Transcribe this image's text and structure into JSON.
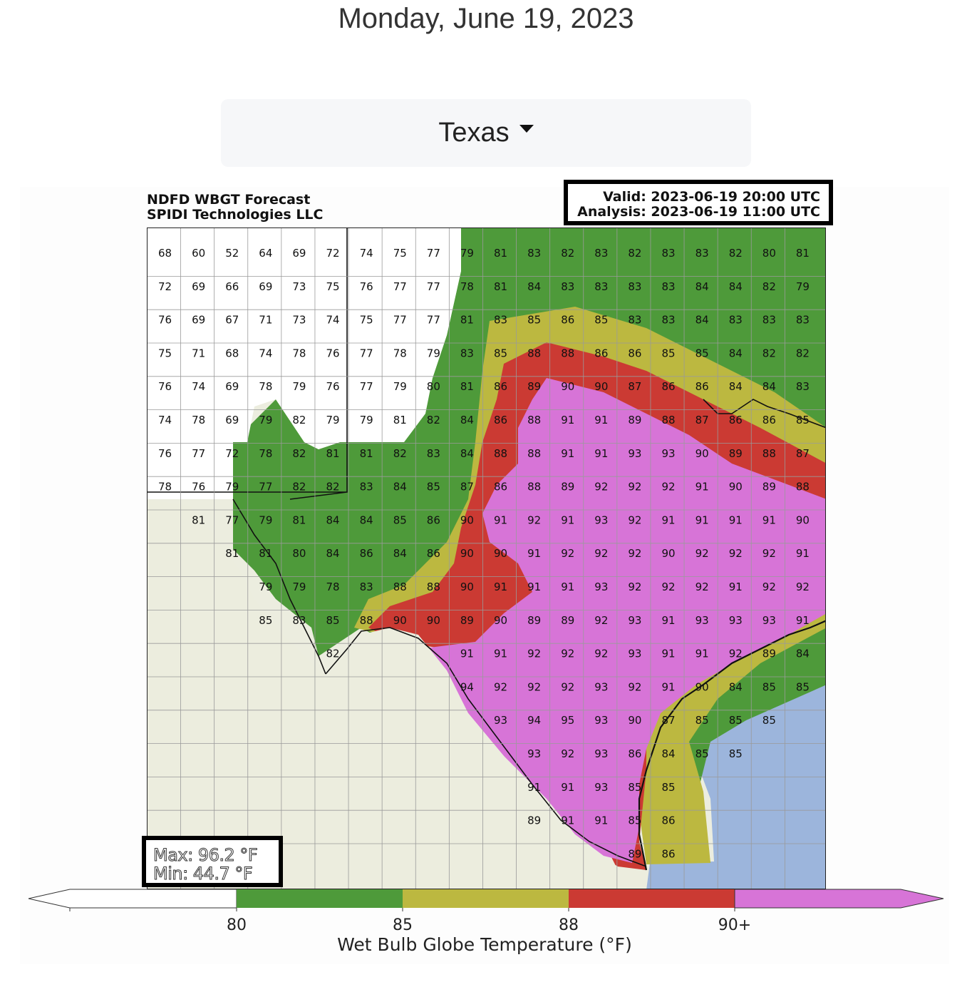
{
  "page": {
    "date": "Monday, June 19, 2023"
  },
  "region_select": {
    "label": "Texas",
    "icon": "caret-down-icon"
  },
  "map": {
    "title_line1": "NDFD WBGT Forecast",
    "title_line2": "SPIDI Technologies LLC",
    "valid": "Valid: 2023-06-19 20:00 UTC",
    "analysis": "Analysis: 2023-06-19 11:00 UTC",
    "max": "Max: 96.2 °F",
    "min": "Min: 44.7 °F",
    "colors": {
      "below80": "#ffffff",
      "80_85": "#4e9a3a",
      "85_88": "#bcb840",
      "88_90": "#cb3a33",
      "90plus": "#d774d7",
      "land_outside": "#ecedde",
      "water": "#9cb5dc"
    },
    "colorbar": {
      "ticks": [
        "80",
        "85",
        "88",
        "90+"
      ],
      "label": "Wet Bulb Globe Temperature (°F)"
    },
    "grid_values": [
      [
        "68",
        "60",
        "52",
        "64",
        "69",
        "72",
        "74",
        "75",
        "77",
        "79",
        "81",
        "83",
        "82",
        "83",
        "82",
        "83",
        "83",
        "82",
        "80",
        "81"
      ],
      [
        "72",
        "69",
        "66",
        "69",
        "73",
        "75",
        "76",
        "77",
        "77",
        "78",
        "81",
        "84",
        "83",
        "83",
        "83",
        "83",
        "84",
        "84",
        "82",
        "79"
      ],
      [
        "76",
        "69",
        "67",
        "71",
        "73",
        "74",
        "75",
        "77",
        "77",
        "81",
        "83",
        "85",
        "86",
        "85",
        "83",
        "83",
        "84",
        "83",
        "83",
        "83"
      ],
      [
        "75",
        "71",
        "68",
        "74",
        "78",
        "76",
        "77",
        "78",
        "79",
        "83",
        "85",
        "88",
        "88",
        "86",
        "86",
        "85",
        "85",
        "84",
        "82",
        "82"
      ],
      [
        "76",
        "74",
        "69",
        "78",
        "79",
        "76",
        "77",
        "79",
        "80",
        "81",
        "86",
        "89",
        "90",
        "90",
        "87",
        "86",
        "86",
        "84",
        "84",
        "83"
      ],
      [
        "74",
        "78",
        "69",
        "79",
        "82",
        "79",
        "79",
        "81",
        "82",
        "84",
        "86",
        "88",
        "91",
        "91",
        "89",
        "88",
        "87",
        "86",
        "86",
        "85"
      ],
      [
        "76",
        "77",
        "72",
        "78",
        "82",
        "81",
        "81",
        "82",
        "83",
        "84",
        "88",
        "88",
        "91",
        "91",
        "93",
        "93",
        "90",
        "89",
        "88",
        "87"
      ],
      [
        "78",
        "76",
        "79",
        "77",
        "82",
        "82",
        "83",
        "84",
        "85",
        "87",
        "86",
        "88",
        "89",
        "92",
        "92",
        "92",
        "91",
        "90",
        "89",
        "88"
      ],
      [
        "",
        "81",
        "77",
        "79",
        "81",
        "84",
        "84",
        "85",
        "86",
        "90",
        "91",
        "92",
        "91",
        "93",
        "92",
        "91",
        "91",
        "91",
        "91",
        "90"
      ],
      [
        "",
        "",
        "81",
        "81",
        "80",
        "84",
        "86",
        "84",
        "86",
        "90",
        "90",
        "91",
        "92",
        "92",
        "92",
        "90",
        "92",
        "92",
        "92",
        "91"
      ],
      [
        "",
        "",
        "",
        "79",
        "79",
        "78",
        "83",
        "88",
        "88",
        "90",
        "91",
        "91",
        "91",
        "93",
        "92",
        "92",
        "92",
        "91",
        "92",
        "92"
      ],
      [
        "",
        "",
        "",
        "85",
        "83",
        "85",
        "88",
        "90",
        "90",
        "89",
        "90",
        "89",
        "89",
        "92",
        "93",
        "91",
        "93",
        "93",
        "93",
        "91"
      ],
      [
        "",
        "",
        "",
        "",
        "",
        "82",
        "",
        "",
        "",
        "91",
        "91",
        "92",
        "92",
        "92",
        "93",
        "91",
        "91",
        "92",
        "89",
        "84"
      ],
      [
        "",
        "",
        "",
        "",
        "",
        "",
        "",
        "",
        "",
        "94",
        "92",
        "92",
        "92",
        "93",
        "92",
        "91",
        "90",
        "84",
        "85",
        "85"
      ],
      [
        "",
        "",
        "",
        "",
        "",
        "",
        "",
        "",
        "",
        "",
        "93",
        "94",
        "95",
        "93",
        "90",
        "87",
        "85",
        "85",
        "85",
        ""
      ],
      [
        "",
        "",
        "",
        "",
        "",
        "",
        "",
        "",
        "",
        "",
        "",
        "93",
        "92",
        "93",
        "86",
        "84",
        "85",
        "85",
        "",
        ""
      ],
      [
        "",
        "",
        "",
        "",
        "",
        "",
        "",
        "",
        "",
        "",
        "",
        "91",
        "91",
        "93",
        "85",
        "85",
        "",
        "",
        "",
        ""
      ],
      [
        "",
        "",
        "",
        "",
        "",
        "",
        "",
        "",
        "",
        "",
        "",
        "89",
        "91",
        "91",
        "85",
        "86",
        "",
        "",
        "",
        ""
      ],
      [
        "",
        "",
        "",
        "",
        "",
        "",
        "",
        "",
        "",
        "",
        "",
        "",
        "",
        "",
        "89",
        "86",
        "",
        "",
        "",
        ""
      ]
    ]
  }
}
